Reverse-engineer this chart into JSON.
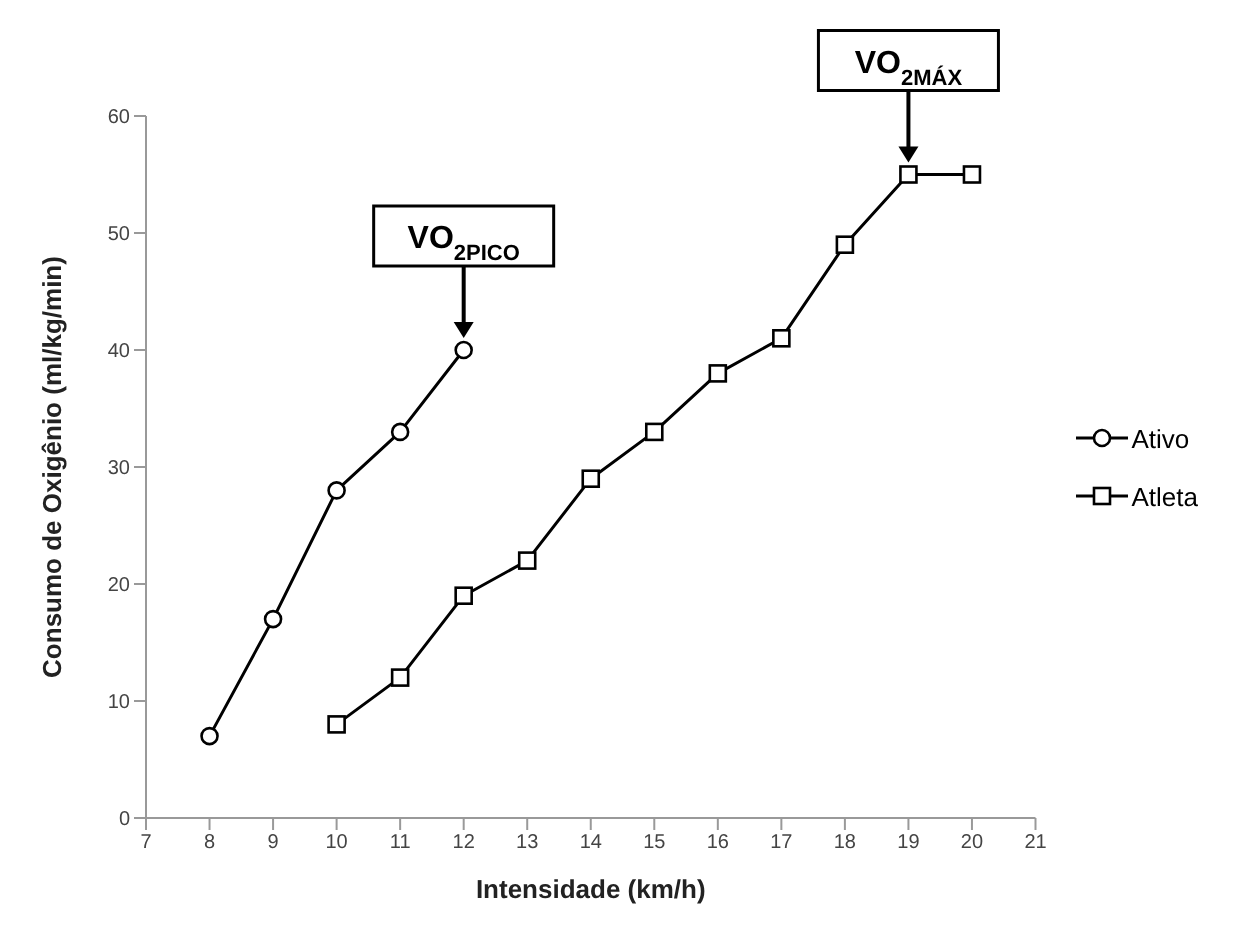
{
  "chart_data": {
    "type": "line",
    "xlabel": "Intensidade (km/h)",
    "ylabel": "Consumo de Oxigênio (ml/kg/min)",
    "xlim": [
      7,
      21
    ],
    "xticks": [
      7,
      8,
      9,
      10,
      11,
      12,
      13,
      14,
      15,
      16,
      17,
      18,
      19,
      20,
      21
    ],
    "ylim": [
      0,
      60
    ],
    "yticks": [
      0,
      10,
      20,
      30,
      40,
      50,
      60
    ],
    "grid": false,
    "legend": "right",
    "line_style": "solid",
    "series": [
      {
        "name": "Ativo",
        "color": "#000000",
        "marker": "circle",
        "x": [
          8,
          9,
          10,
          11,
          12
        ],
        "values": [
          7,
          17,
          28,
          33,
          40
        ]
      },
      {
        "name": "Atleta",
        "color": "#000000",
        "marker": "square",
        "x": [
          10,
          11,
          12,
          13,
          14,
          15,
          16,
          17,
          18,
          19,
          20
        ],
        "values": [
          8,
          12,
          19,
          22,
          29,
          33,
          38,
          41,
          49,
          55,
          55
        ]
      }
    ],
    "annotations": [
      {
        "text": "VO$_{2PICO}$",
        "x": 12,
        "y": 40
      },
      {
        "text": "VO$_{2MÁX}$",
        "x": 19,
        "y": 55
      }
    ]
  }
}
